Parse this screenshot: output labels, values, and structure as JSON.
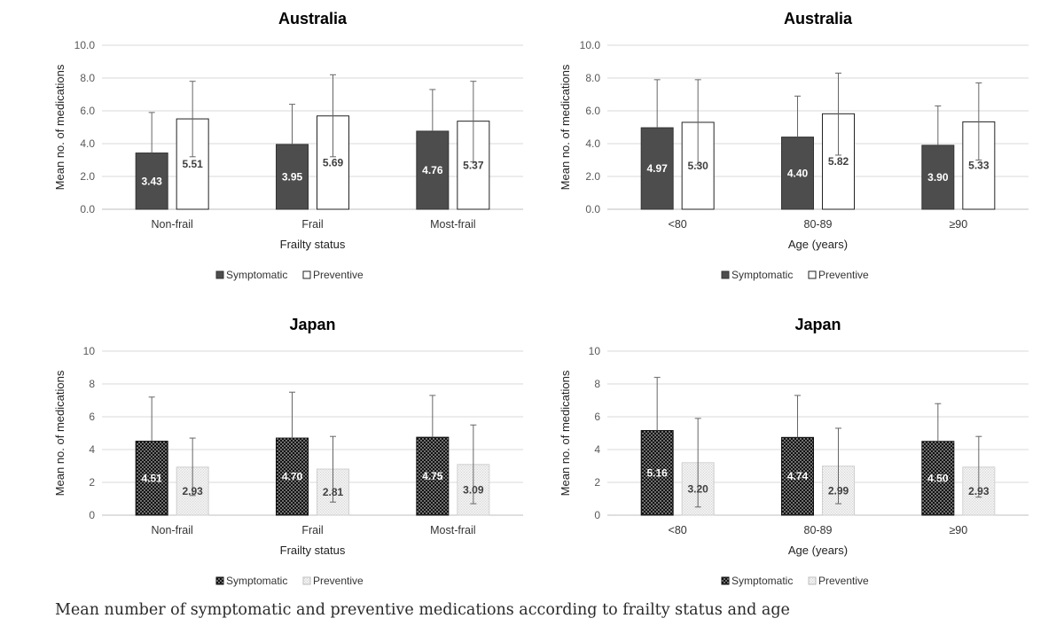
{
  "caption": "Mean number of symptomatic and preventive medications according to frailty status and age",
  "colors": {
    "symptomatic_au": "#4d4d4d",
    "preventive_au": "#ffffff",
    "grid": "#d9d9d9",
    "axis_text": "#595959",
    "title": "#000000"
  },
  "chart_data": [
    {
      "type": "bar",
      "title": "Australia",
      "xlabel": "Frailty status",
      "ylabel": "Mean no. of medications",
      "ylim": [
        0,
        10
      ],
      "yticks": [
        "0.0",
        "2.0",
        "4.0",
        "6.0",
        "8.0",
        "10.0"
      ],
      "categories": [
        "Non-frail",
        "Frail",
        "Most-frail"
      ],
      "series": [
        {
          "name": "Symptomatic",
          "values": [
            3.43,
            3.95,
            4.76
          ],
          "labels": [
            "3.43",
            "3.95",
            "4.76"
          ],
          "error_upper": [
            5.9,
            6.4,
            7.3
          ],
          "style": "solid-dark"
        },
        {
          "name": "Preventive",
          "values": [
            5.51,
            5.69,
            5.37
          ],
          "labels": [
            "5.51",
            "5.69",
            "5.37"
          ],
          "error_upper": [
            7.8,
            8.2,
            7.8
          ],
          "error_lower": [
            3.2,
            3.2,
            2.9
          ],
          "style": "outline"
        }
      ],
      "legend_position": "bottom",
      "grid": true
    },
    {
      "type": "bar",
      "title": "Australia",
      "xlabel": "Age (years)",
      "ylabel": "Mean no. of medications",
      "ylim": [
        0,
        10
      ],
      "yticks": [
        "0.0",
        "2.0",
        "4.0",
        "6.0",
        "8.0",
        "10.0"
      ],
      "categories": [
        "<80",
        "80-89",
        "≥90"
      ],
      "series": [
        {
          "name": "Symptomatic",
          "values": [
            4.97,
            4.4,
            3.9
          ],
          "labels": [
            "4.97",
            "4.40",
            "3.90"
          ],
          "error_upper": [
            7.9,
            6.9,
            6.3
          ],
          "style": "solid-dark"
        },
        {
          "name": "Preventive",
          "values": [
            5.3,
            5.82,
            5.33
          ],
          "labels": [
            "5.30",
            "5.82",
            "5.33"
          ],
          "error_upper": [
            7.9,
            8.3,
            7.7
          ],
          "error_lower": [
            2.7,
            3.3,
            3.0
          ],
          "style": "outline"
        }
      ],
      "legend_position": "bottom",
      "grid": true
    },
    {
      "type": "bar",
      "title": "Japan",
      "xlabel": "Frailty status",
      "ylabel": "Mean no. of medications",
      "ylim": [
        0,
        10
      ],
      "yticks": [
        "0",
        "2",
        "4",
        "6",
        "8",
        "10"
      ],
      "categories": [
        "Non-frail",
        "Frail",
        "Most-frail"
      ],
      "series": [
        {
          "name": "Symptomatic",
          "values": [
            4.51,
            4.7,
            4.75
          ],
          "labels": [
            "4.51",
            "4.70",
            "4.75"
          ],
          "error_upper": [
            7.2,
            7.5,
            7.3
          ],
          "style": "dotted-dark"
        },
        {
          "name": "Preventive",
          "values": [
            2.93,
            2.81,
            3.09
          ],
          "labels": [
            "2.93",
            "2.81",
            "3.09"
          ],
          "error_upper": [
            4.7,
            4.8,
            5.5
          ],
          "error_lower": [
            1.2,
            0.8,
            0.7
          ],
          "style": "dotted-light"
        }
      ],
      "legend_position": "bottom",
      "grid": true
    },
    {
      "type": "bar",
      "title": "Japan",
      "xlabel": "Age (years)",
      "ylabel": "Mean no. of medications",
      "ylim": [
        0,
        10
      ],
      "yticks": [
        "0",
        "2",
        "4",
        "6",
        "8",
        "10"
      ],
      "categories": [
        "<80",
        "80-89",
        "≥90"
      ],
      "series": [
        {
          "name": "Symptomatic",
          "values": [
            5.16,
            4.74,
            4.5
          ],
          "labels": [
            "5.16",
            "4.74",
            "4.50"
          ],
          "error_upper": [
            8.4,
            7.3,
            6.8
          ],
          "style": "dotted-dark"
        },
        {
          "name": "Preventive",
          "values": [
            3.2,
            2.99,
            2.93
          ],
          "labels": [
            "3.20",
            "2.99",
            "2.93"
          ],
          "error_upper": [
            5.9,
            5.3,
            4.8
          ],
          "error_lower": [
            0.5,
            0.7,
            1.1
          ],
          "style": "dotted-light"
        }
      ],
      "legend_position": "bottom",
      "grid": true
    }
  ]
}
